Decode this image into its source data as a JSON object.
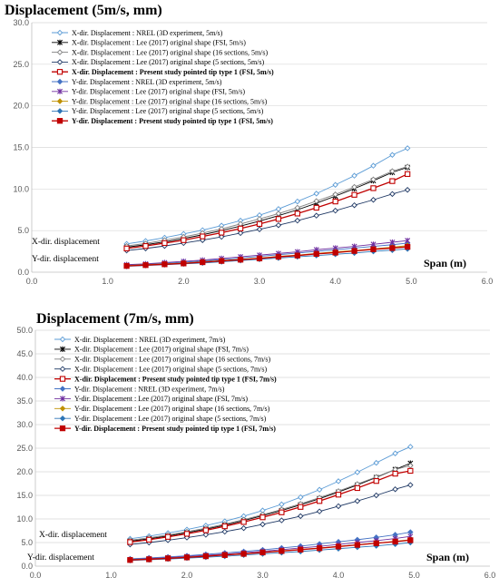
{
  "chart_data": [
    {
      "type": "line",
      "title": "Displacement (5m/s, mm)",
      "xlabel": "Span (m)",
      "ylabel": "",
      "xlim": [
        0,
        6
      ],
      "ylim": [
        0,
        30
      ],
      "x_ticks": [
        "0.0",
        "1.0",
        "2.0",
        "3.0",
        "4.0",
        "5.0",
        "6.0"
      ],
      "y_ticks": [
        "0.0",
        "5.0",
        "10.0",
        "15.0",
        "20.0",
        "25.0",
        "30.0"
      ],
      "grid": "horizontal",
      "legend_position": "top-left",
      "annotations": [
        "X-dir. displacement",
        "Y-dir. displacement"
      ],
      "x": [
        1.25,
        1.5,
        1.75,
        2.0,
        2.25,
        2.5,
        2.75,
        3.0,
        3.25,
        3.5,
        3.75,
        4.0,
        4.25,
        4.5,
        4.75,
        4.95
      ],
      "series": [
        {
          "name": "X-dir. Displacement : NREL (3D experiment, 5m/s)",
          "color": "#5b9bd5",
          "marker": "diamond-open",
          "bold": false,
          "values": [
            3.4,
            3.75,
            4.15,
            4.6,
            5.05,
            5.6,
            6.2,
            6.85,
            7.6,
            8.5,
            9.45,
            10.5,
            11.6,
            12.8,
            14.1,
            14.9
          ]
        },
        {
          "name": "X-dir. Displacement : Lee (2017) original shape (FSI, 5m/s)",
          "color": "#000000",
          "marker": "star",
          "bold": false,
          "values": [
            3.0,
            3.3,
            3.65,
            4.05,
            4.5,
            5.0,
            5.55,
            6.15,
            6.8,
            7.5,
            8.3,
            9.15,
            10.05,
            11.0,
            12.0,
            12.6
          ]
        },
        {
          "name": "X-dir. Displacement : Lee (2017) original shape (16 sections, 5m/s)",
          "color": "#808080",
          "marker": "diamond-open",
          "bold": false,
          "values": [
            3.15,
            3.45,
            3.85,
            4.25,
            4.7,
            5.2,
            5.8,
            6.4,
            7.05,
            7.75,
            8.55,
            9.35,
            10.25,
            11.15,
            12.15,
            12.7
          ]
        },
        {
          "name": "X-dir. Displacement : Lee (2017) original shape (5 sections, 5m/s)",
          "color": "#1f3864",
          "marker": "diamond-open",
          "bold": false,
          "values": [
            2.6,
            2.85,
            3.15,
            3.5,
            3.85,
            4.25,
            4.7,
            5.15,
            5.65,
            6.2,
            6.8,
            7.4,
            8.05,
            8.7,
            9.4,
            9.9
          ]
        },
        {
          "name": "X-dir. Displacement : Present study pointed tip type 1 (FSI, 5m/s)",
          "color": "#c00000",
          "marker": "square-open",
          "bold": true,
          "values": [
            2.85,
            3.15,
            3.5,
            3.85,
            4.3,
            4.75,
            5.25,
            5.8,
            6.4,
            7.05,
            7.75,
            8.5,
            9.3,
            10.1,
            10.95,
            11.8
          ]
        },
        {
          "name": "Y-dir. Displacement : NREL (3D experiment, 5m/s)",
          "color": "#4472c4",
          "marker": "diamond",
          "bold": false,
          "values": [
            0.85,
            0.95,
            1.05,
            1.2,
            1.35,
            1.5,
            1.7,
            1.9,
            2.1,
            2.3,
            2.5,
            2.7,
            2.9,
            3.1,
            3.3,
            3.5
          ]
        },
        {
          "name": "Y-dir. Displacement : Lee (2017) original shape (FSI, 5m/s)",
          "color": "#7030a0",
          "marker": "star",
          "bold": false,
          "values": [
            0.9,
            1.0,
            1.15,
            1.3,
            1.45,
            1.65,
            1.85,
            2.05,
            2.25,
            2.45,
            2.7,
            2.9,
            3.1,
            3.35,
            3.6,
            3.8
          ]
        },
        {
          "name": "Y-dir. Displacement : Lee (2017) original shape (16 sections, 5m/s)",
          "color": "#bf9000",
          "marker": "diamond",
          "bold": false,
          "values": [
            0.8,
            0.9,
            1.0,
            1.1,
            1.25,
            1.4,
            1.55,
            1.7,
            1.9,
            2.05,
            2.25,
            2.45,
            2.6,
            2.8,
            3.0,
            3.2
          ]
        },
        {
          "name": "Y-dir. Displacement : Lee (2017) original shape (5 sections, 5m/s)",
          "color": "#2e75b6",
          "marker": "diamond",
          "bold": false,
          "values": [
            0.7,
            0.8,
            0.9,
            1.0,
            1.1,
            1.25,
            1.4,
            1.55,
            1.7,
            1.85,
            2.0,
            2.15,
            2.3,
            2.5,
            2.65,
            2.8
          ]
        },
        {
          "name": "Y-dir. Displacement : Present study pointed tip type 1 (FSI, 5m/s)",
          "color": "#c00000",
          "marker": "square",
          "bold": true,
          "values": [
            0.75,
            0.85,
            0.95,
            1.05,
            1.2,
            1.35,
            1.5,
            1.65,
            1.85,
            2.0,
            2.2,
            2.35,
            2.55,
            2.75,
            2.9,
            3.05
          ]
        }
      ]
    },
    {
      "type": "line",
      "title": "Displacement (7m/s, mm)",
      "xlabel": "Span (m)",
      "ylabel": "",
      "xlim": [
        0,
        6
      ],
      "ylim": [
        0,
        50
      ],
      "x_ticks": [
        "0.0",
        "1.0",
        "2.0",
        "3.0",
        "4.0",
        "5.0",
        "6.0"
      ],
      "y_ticks": [
        "0.0",
        "5.0",
        "10.0",
        "15.0",
        "20.0",
        "25.0",
        "30.0",
        "35.0",
        "40.0",
        "45.0",
        "50.0"
      ],
      "grid": "horizontal",
      "legend_position": "top-left",
      "annotations": [
        "X-dir. displacement",
        "Y-dir. displacement"
      ],
      "x": [
        1.25,
        1.5,
        1.75,
        2.0,
        2.25,
        2.5,
        2.75,
        3.0,
        3.25,
        3.5,
        3.75,
        4.0,
        4.25,
        4.5,
        4.75,
        4.95
      ],
      "series": [
        {
          "name": "X-dir. Displacement : NREL (3D experiment, 7m/s)",
          "color": "#5b9bd5",
          "marker": "diamond-open",
          "bold": false,
          "values": [
            5.8,
            6.35,
            7.0,
            7.75,
            8.6,
            9.5,
            10.6,
            11.8,
            13.1,
            14.6,
            16.2,
            18.0,
            19.9,
            21.9,
            23.9,
            25.3
          ]
        },
        {
          "name": "X-dir. Displacement : Lee (2017) original shape (FSI, 7m/s)",
          "color": "#000000",
          "marker": "star",
          "bold": false,
          "values": [
            5.3,
            5.8,
            6.4,
            7.1,
            7.85,
            8.7,
            9.65,
            10.7,
            11.8,
            13.0,
            14.3,
            15.7,
            17.2,
            18.8,
            20.5,
            21.8
          ]
        },
        {
          "name": "X-dir. Displacement : Lee (2017) original shape (16 sections, 7m/s)",
          "color": "#808080",
          "marker": "diamond-open",
          "bold": false,
          "values": [
            5.5,
            6.0,
            6.6,
            7.3,
            8.05,
            8.9,
            9.85,
            10.9,
            12.0,
            13.2,
            14.5,
            15.9,
            17.4,
            18.9,
            20.5,
            21.3
          ]
        },
        {
          "name": "X-dir. Displacement : Lee (2017) original shape (5 sections, 7m/s)",
          "color": "#1f3864",
          "marker": "diamond-open",
          "bold": false,
          "values": [
            4.6,
            5.0,
            5.5,
            6.05,
            6.65,
            7.3,
            8.05,
            8.85,
            9.7,
            10.6,
            11.6,
            12.7,
            13.8,
            15.0,
            16.3,
            17.2
          ]
        },
        {
          "name": "X-dir. Displacement : Present study pointed tip type 1 (FSI, 7m/s)",
          "color": "#c00000",
          "marker": "square-open",
          "bold": true,
          "values": [
            5.1,
            5.6,
            6.2,
            6.85,
            7.6,
            8.45,
            9.35,
            10.35,
            11.4,
            12.55,
            13.8,
            15.15,
            16.55,
            18.05,
            19.6,
            20.2
          ]
        },
        {
          "name": "Y-dir. Displacement : NREL (3D experiment, 7m/s)",
          "color": "#4472c4",
          "marker": "diamond",
          "bold": false,
          "values": [
            1.55,
            1.75,
            1.95,
            2.2,
            2.5,
            2.8,
            3.1,
            3.45,
            3.85,
            4.25,
            4.7,
            5.15,
            5.6,
            6.1,
            6.65,
            7.2
          ]
        },
        {
          "name": "Y-dir. Displacement : Lee (2017) original shape (FSI, 7m/s)",
          "color": "#7030a0",
          "marker": "star",
          "bold": false,
          "values": [
            1.4,
            1.6,
            1.8,
            2.05,
            2.3,
            2.55,
            2.85,
            3.15,
            3.5,
            3.85,
            4.2,
            4.6,
            5.0,
            5.4,
            5.85,
            6.3
          ]
        },
        {
          "name": "Y-dir. Displacement : Lee (2017) original shape (16 sections, 7m/s)",
          "color": "#bf9000",
          "marker": "diamond",
          "bold": false,
          "values": [
            1.35,
            1.5,
            1.7,
            1.9,
            2.15,
            2.4,
            2.65,
            2.95,
            3.25,
            3.55,
            3.85,
            4.2,
            4.55,
            4.9,
            5.25,
            5.6
          ]
        },
        {
          "name": "Y-dir. Displacement : Lee (2017) original shape (5 sections, 7m/s)",
          "color": "#2e75b6",
          "marker": "diamond",
          "bold": false,
          "values": [
            1.2,
            1.35,
            1.5,
            1.7,
            1.9,
            2.1,
            2.35,
            2.6,
            2.85,
            3.1,
            3.4,
            3.7,
            4.0,
            4.3,
            4.65,
            5.0
          ]
        },
        {
          "name": "Y-dir. Displacement : Present study pointed tip type 1 (FSI, 7m/s)",
          "color": "#c00000",
          "marker": "square",
          "bold": true,
          "values": [
            1.3,
            1.45,
            1.65,
            1.85,
            2.1,
            2.35,
            2.6,
            2.9,
            3.2,
            3.5,
            3.8,
            4.15,
            4.5,
            4.85,
            5.2,
            5.5
          ]
        }
      ]
    }
  ]
}
